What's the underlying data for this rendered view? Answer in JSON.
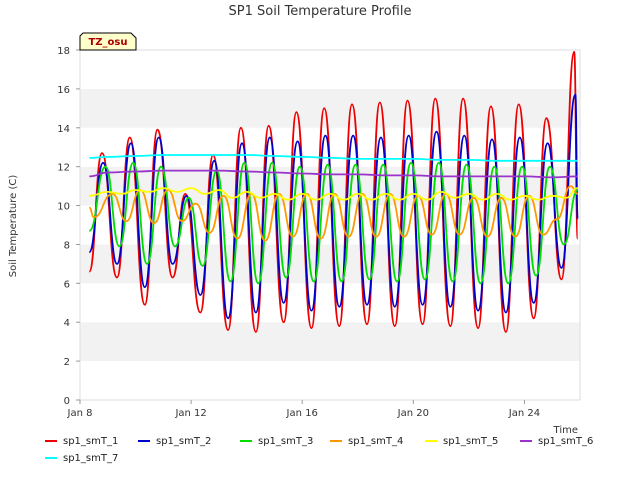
{
  "chart_data": {
    "type": "line",
    "title": "SP1 Soil Temperature Profile",
    "xlabel": "Time",
    "ylabel": "Soil Temperature (C)",
    "ylim": [
      0,
      18
    ],
    "xlim": [
      "2024-01-08",
      "2024-01-26"
    ],
    "yticks": [
      0,
      2,
      4,
      6,
      8,
      10,
      12,
      14,
      16,
      18
    ],
    "xticks": [
      {
        "date": "2024-01-08",
        "label": "Jan 8"
      },
      {
        "date": "2024-01-12",
        "label": "Jan 12"
      },
      {
        "date": "2024-01-16",
        "label": "Jan 16"
      },
      {
        "date": "2024-01-20",
        "label": "Jan 20"
      },
      {
        "date": "2024-01-24",
        "label": "Jan 24"
      }
    ],
    "grid": "horizontal bands",
    "legend_position": "bottom",
    "badge": "TZ_osu",
    "series": [
      {
        "name": "sp1_smT_1",
        "color": "#ee0000",
        "x": [
          "2024-01-08 08:00",
          "2024-01-08 19:00",
          "2024-01-09 08:00",
          "2024-01-09 19:00",
          "2024-01-10 08:00",
          "2024-01-10 19:00",
          "2024-01-11 08:00",
          "2024-01-11 19:00",
          "2024-01-12 08:00",
          "2024-01-12 19:00",
          "2024-01-13 08:00",
          "2024-01-13 19:00",
          "2024-01-14 08:00",
          "2024-01-14 19:00",
          "2024-01-15 08:00",
          "2024-01-15 19:00",
          "2024-01-16 08:00",
          "2024-01-16 19:00",
          "2024-01-17 08:00",
          "2024-01-17 19:00",
          "2024-01-18 08:00",
          "2024-01-18 19:00",
          "2024-01-19 08:00",
          "2024-01-19 19:00",
          "2024-01-20 08:00",
          "2024-01-20 19:00",
          "2024-01-21 08:00",
          "2024-01-21 19:00",
          "2024-01-22 08:00",
          "2024-01-22 19:00",
          "2024-01-23 08:00",
          "2024-01-23 19:00",
          "2024-01-24 08:00",
          "2024-01-24 19:00",
          "2024-01-25 08:00",
          "2024-01-25 19:00",
          "2024-01-25 22:00"
        ],
        "y": [
          6.6,
          12.7,
          6.3,
          13.5,
          4.9,
          13.9,
          6.3,
          10.6,
          4.5,
          12.6,
          3.6,
          14.0,
          3.5,
          14.1,
          4.0,
          14.8,
          3.7,
          15.0,
          3.8,
          15.2,
          3.9,
          15.3,
          3.8,
          15.4,
          3.9,
          15.5,
          3.8,
          15.5,
          3.7,
          15.1,
          3.5,
          15.2,
          4.2,
          14.5,
          6.2,
          17.9,
          8.3
        ]
      },
      {
        "name": "sp1_smT_2",
        "color": "#0000cc",
        "x": [
          "2024-01-08 08:00",
          "2024-01-08 20:00",
          "2024-01-09 08:00",
          "2024-01-09 20:00",
          "2024-01-10 08:00",
          "2024-01-10 20:00",
          "2024-01-11 08:00",
          "2024-01-11 20:00",
          "2024-01-12 08:00",
          "2024-01-12 20:00",
          "2024-01-13 08:00",
          "2024-01-13 20:00",
          "2024-01-14 08:00",
          "2024-01-14 20:00",
          "2024-01-15 08:00",
          "2024-01-15 20:00",
          "2024-01-16 08:00",
          "2024-01-16 20:00",
          "2024-01-17 08:00",
          "2024-01-17 20:00",
          "2024-01-18 08:00",
          "2024-01-18 20:00",
          "2024-01-19 08:00",
          "2024-01-19 20:00",
          "2024-01-20 08:00",
          "2024-01-20 20:00",
          "2024-01-21 08:00",
          "2024-01-21 20:00",
          "2024-01-22 08:00",
          "2024-01-22 20:00",
          "2024-01-23 08:00",
          "2024-01-23 20:00",
          "2024-01-24 08:00",
          "2024-01-24 20:00",
          "2024-01-25 08:00",
          "2024-01-25 20:00",
          "2024-01-25 22:00"
        ],
        "y": [
          7.6,
          12.2,
          7.0,
          13.2,
          5.8,
          13.5,
          7.0,
          10.5,
          5.4,
          12.3,
          4.2,
          13.2,
          4.5,
          13.5,
          5.0,
          13.3,
          4.6,
          13.6,
          4.8,
          13.6,
          4.9,
          13.5,
          4.8,
          13.6,
          4.9,
          13.8,
          4.8,
          13.6,
          4.6,
          13.4,
          4.5,
          13.5,
          5.0,
          13.2,
          6.8,
          15.7,
          9.3
        ]
      },
      {
        "name": "sp1_smT_3",
        "color": "#00dd00",
        "x": [
          "2024-01-08 08:00",
          "2024-01-08 22:00",
          "2024-01-09 10:00",
          "2024-01-09 22:00",
          "2024-01-10 10:00",
          "2024-01-10 22:00",
          "2024-01-11 10:00",
          "2024-01-11 22:00",
          "2024-01-12 10:00",
          "2024-01-12 22:00",
          "2024-01-13 10:00",
          "2024-01-13 22:00",
          "2024-01-14 10:00",
          "2024-01-14 22:00",
          "2024-01-15 10:00",
          "2024-01-15 22:00",
          "2024-01-16 10:00",
          "2024-01-16 22:00",
          "2024-01-17 10:00",
          "2024-01-17 22:00",
          "2024-01-18 10:00",
          "2024-01-18 22:00",
          "2024-01-19 10:00",
          "2024-01-19 22:00",
          "2024-01-20 10:00",
          "2024-01-20 22:00",
          "2024-01-21 10:00",
          "2024-01-21 22:00",
          "2024-01-22 10:00",
          "2024-01-22 22:00",
          "2024-01-23 10:00",
          "2024-01-23 22:00",
          "2024-01-24 10:00",
          "2024-01-24 22:00",
          "2024-01-25 10:00",
          "2024-01-25 22:00"
        ],
        "y": [
          8.7,
          12.0,
          7.9,
          12.2,
          7.0,
          12.0,
          7.9,
          10.4,
          6.9,
          11.8,
          6.1,
          12.2,
          6.0,
          12.2,
          6.3,
          12.0,
          6.1,
          12.1,
          6.1,
          12.1,
          6.2,
          12.1,
          6.1,
          12.2,
          6.2,
          12.2,
          6.1,
          12.1,
          6.0,
          12.0,
          6.0,
          12.0,
          6.4,
          12.0,
          8.0,
          10.8
        ]
      },
      {
        "name": "sp1_smT_4",
        "color": "#ff9900",
        "x": [
          "2024-01-08 08:00",
          "2024-01-08 12:00",
          "2024-01-09 04:00",
          "2024-01-09 16:00",
          "2024-01-10 04:00",
          "2024-01-10 16:00",
          "2024-01-11 04:00",
          "2024-01-11 16:00",
          "2024-01-12 04:00",
          "2024-01-12 16:00",
          "2024-01-13 04:00",
          "2024-01-13 16:00",
          "2024-01-14 04:00",
          "2024-01-14 16:00",
          "2024-01-15 04:00",
          "2024-01-15 16:00",
          "2024-01-16 04:00",
          "2024-01-16 16:00",
          "2024-01-17 04:00",
          "2024-01-17 16:00",
          "2024-01-18 04:00",
          "2024-01-18 16:00",
          "2024-01-19 04:00",
          "2024-01-19 16:00",
          "2024-01-20 04:00",
          "2024-01-20 16:00",
          "2024-01-21 04:00",
          "2024-01-21 16:00",
          "2024-01-22 04:00",
          "2024-01-22 16:00",
          "2024-01-23 04:00",
          "2024-01-23 16:00",
          "2024-01-24 04:00",
          "2024-01-24 16:00",
          "2024-01-25 04:00",
          "2024-01-25 16:00",
          "2024-01-25 22:00"
        ],
        "y": [
          9.9,
          9.4,
          10.6,
          9.2,
          10.8,
          9.1,
          10.8,
          9.2,
          10.1,
          8.6,
          10.5,
          8.3,
          10.6,
          8.2,
          10.6,
          8.4,
          10.6,
          8.3,
          10.6,
          8.4,
          10.6,
          8.4,
          10.6,
          8.4,
          10.5,
          8.5,
          10.6,
          8.5,
          10.4,
          8.4,
          10.4,
          8.4,
          10.5,
          8.5,
          9.3,
          11.0,
          10.6
        ]
      },
      {
        "name": "sp1_smT_5",
        "color": "#ffff00",
        "x": [
          "2024-01-08 08:00",
          "2024-01-09 00:00",
          "2024-01-09 12:00",
          "2024-01-10 00:00",
          "2024-01-10 12:00",
          "2024-01-11 00:00",
          "2024-01-11 12:00",
          "2024-01-12 00:00",
          "2024-01-12 12:00",
          "2024-01-13 00:00",
          "2024-01-13 12:00",
          "2024-01-14 00:00",
          "2024-01-14 12:00",
          "2024-01-15 00:00",
          "2024-01-15 12:00",
          "2024-01-16 00:00",
          "2024-01-16 12:00",
          "2024-01-17 00:00",
          "2024-01-17 12:00",
          "2024-01-18 00:00",
          "2024-01-18 12:00",
          "2024-01-19 00:00",
          "2024-01-19 12:00",
          "2024-01-20 00:00",
          "2024-01-20 12:00",
          "2024-01-21 00:00",
          "2024-01-21 12:00",
          "2024-01-22 00:00",
          "2024-01-22 12:00",
          "2024-01-23 00:00",
          "2024-01-23 12:00",
          "2024-01-24 00:00",
          "2024-01-24 12:00",
          "2024-01-25 00:00",
          "2024-01-25 12:00",
          "2024-01-25 22:00"
        ],
        "y": [
          10.5,
          10.7,
          10.6,
          10.8,
          10.7,
          10.9,
          10.7,
          10.9,
          10.6,
          10.8,
          10.4,
          10.7,
          10.4,
          10.6,
          10.3,
          10.6,
          10.3,
          10.6,
          10.3,
          10.6,
          10.3,
          10.6,
          10.3,
          10.6,
          10.3,
          10.7,
          10.4,
          10.6,
          10.3,
          10.6,
          10.3,
          10.5,
          10.3,
          10.5,
          10.4,
          10.9
        ]
      },
      {
        "name": "sp1_smT_6",
        "color": "#9933cc",
        "x": [
          "2024-01-08 08:00",
          "2024-01-09 00:00",
          "2024-01-10 00:00",
          "2024-01-11 00:00",
          "2024-01-12 00:00",
          "2024-01-13 00:00",
          "2024-01-14 00:00",
          "2024-01-15 00:00",
          "2024-01-16 00:00",
          "2024-01-17 00:00",
          "2024-01-18 00:00",
          "2024-01-19 00:00",
          "2024-01-20 00:00",
          "2024-01-21 00:00",
          "2024-01-22 00:00",
          "2024-01-23 00:00",
          "2024-01-24 00:00",
          "2024-01-25 00:00",
          "2024-01-25 22:00"
        ],
        "y": [
          11.5,
          11.7,
          11.75,
          11.8,
          11.8,
          11.8,
          11.75,
          11.7,
          11.65,
          11.6,
          11.6,
          11.55,
          11.55,
          11.5,
          11.5,
          11.5,
          11.5,
          11.45,
          11.5
        ]
      },
      {
        "name": "sp1_smT_7",
        "color": "#00ffff",
        "x": [
          "2024-01-08 08:00",
          "2024-01-09 00:00",
          "2024-01-10 00:00",
          "2024-01-11 00:00",
          "2024-01-12 00:00",
          "2024-01-13 00:00",
          "2024-01-14 00:00",
          "2024-01-15 00:00",
          "2024-01-16 00:00",
          "2024-01-17 00:00",
          "2024-01-18 00:00",
          "2024-01-19 00:00",
          "2024-01-20 00:00",
          "2024-01-21 00:00",
          "2024-01-22 00:00",
          "2024-01-23 00:00",
          "2024-01-24 00:00",
          "2024-01-25 00:00",
          "2024-01-25 22:00"
        ],
        "y": [
          12.45,
          12.5,
          12.55,
          12.6,
          12.6,
          12.6,
          12.6,
          12.55,
          12.5,
          12.45,
          12.4,
          12.4,
          12.4,
          12.35,
          12.35,
          12.3,
          12.3,
          12.3,
          12.3
        ]
      }
    ]
  }
}
